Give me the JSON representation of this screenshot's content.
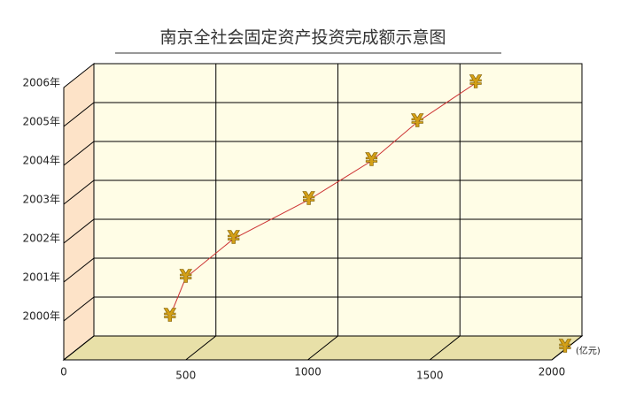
{
  "chart_data": {
    "type": "line",
    "horizontal": true,
    "title": "南京全社会固定资产投资完成额示意图",
    "categories": [
      "2000年",
      "2001年",
      "2002年",
      "2003年",
      "2004年",
      "2005年",
      "2006年"
    ],
    "values": [
      435,
      500,
      696,
      1004,
      1261,
      1449,
      1688
    ],
    "color": "#cc3333",
    "marker": "¥",
    "marker_color": "#d4a017",
    "x_unit": "(亿元)",
    "xlim": [
      0,
      2000
    ],
    "xticks": [
      0,
      500,
      1000,
      1500,
      2000
    ],
    "grid": true
  }
}
